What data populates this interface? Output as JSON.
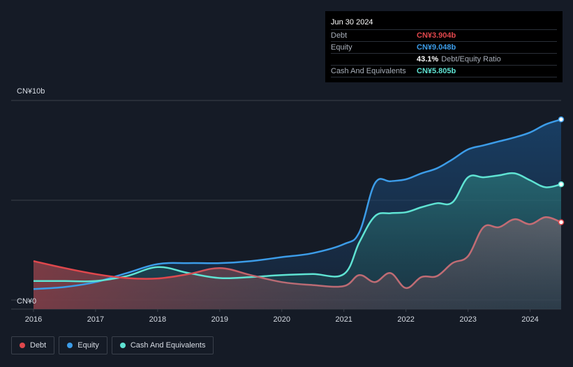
{
  "tooltip": {
    "date": "Jun 30 2024",
    "rows": [
      {
        "label": "Debt",
        "value": "CN¥3.904b",
        "color": "#e0474c"
      },
      {
        "label": "Equity",
        "value": "CN¥9.048b",
        "color": "#3c9ce8"
      },
      {
        "label": "",
        "value": "43.1%",
        "sub": "Debt/Equity Ratio",
        "color": "#ffffff"
      },
      {
        "label": "Cash And Equivalents",
        "value": "CN¥5.805b",
        "color": "#5fe3d3"
      }
    ]
  },
  "legend": [
    {
      "label": "Debt",
      "color": "#e0474c"
    },
    {
      "label": "Equity",
      "color": "#3c9ce8"
    },
    {
      "label": "Cash And Equivalents",
      "color": "#5fe3d3"
    }
  ],
  "chart_data": {
    "type": "area",
    "y_tick_labels": [
      "CN¥10b",
      "CN¥0"
    ],
    "ylim": [
      0,
      10
    ],
    "xlim": [
      2016.0,
      2024.5
    ],
    "x_tick_labels": [
      "2016",
      "2017",
      "2018",
      "2019",
      "2020",
      "2021",
      "2022",
      "2023",
      "2024"
    ],
    "grid": true,
    "series": [
      {
        "name": "Debt",
        "color": "#e0474c",
        "x": [
          2016.0,
          2016.5,
          2017.0,
          2017.5,
          2018.0,
          2018.5,
          2019.0,
          2019.5,
          2020.0,
          2020.5,
          2021.0,
          2021.25,
          2021.5,
          2021.75,
          2022.0,
          2022.25,
          2022.5,
          2022.75,
          2023.0,
          2023.25,
          2023.5,
          2023.75,
          2024.0,
          2024.25,
          2024.5
        ],
        "y": [
          1.95,
          1.6,
          1.3,
          1.1,
          1.08,
          1.3,
          1.6,
          1.25,
          0.9,
          0.75,
          0.7,
          1.25,
          0.9,
          1.35,
          0.6,
          1.15,
          1.2,
          1.85,
          2.2,
          3.65,
          3.65,
          4.05,
          3.8,
          4.15,
          3.9
        ]
      },
      {
        "name": "Equity",
        "color": "#3c9ce8",
        "x": [
          2016.0,
          2016.5,
          2017.0,
          2017.5,
          2018.0,
          2018.5,
          2019.0,
          2019.5,
          2020.0,
          2020.5,
          2021.0,
          2021.25,
          2021.5,
          2021.75,
          2022.0,
          2022.25,
          2022.5,
          2022.75,
          2023.0,
          2023.25,
          2023.5,
          2023.75,
          2024.0,
          2024.25,
          2024.5
        ],
        "y": [
          0.55,
          0.65,
          0.9,
          1.35,
          1.8,
          1.85,
          1.85,
          1.95,
          2.15,
          2.35,
          2.8,
          3.4,
          5.85,
          5.95,
          6.05,
          6.35,
          6.6,
          7.05,
          7.55,
          7.75,
          7.95,
          8.15,
          8.4,
          8.8,
          9.05
        ]
      },
      {
        "name": "Cash And Equivalents",
        "color": "#5fe3d3",
        "x": [
          2016.0,
          2016.5,
          2017.0,
          2017.5,
          2018.0,
          2018.5,
          2019.0,
          2019.5,
          2020.0,
          2020.5,
          2021.0,
          2021.25,
          2021.5,
          2021.75,
          2022.0,
          2022.25,
          2022.5,
          2022.75,
          2023.0,
          2023.25,
          2023.5,
          2023.75,
          2024.0,
          2024.25,
          2024.5
        ],
        "y": [
          0.95,
          0.95,
          0.95,
          1.2,
          1.65,
          1.35,
          1.1,
          1.15,
          1.25,
          1.3,
          1.3,
          2.9,
          4.2,
          4.35,
          4.4,
          4.65,
          4.85,
          4.9,
          6.15,
          6.15,
          6.25,
          6.35,
          6.0,
          5.65,
          5.8
        ]
      }
    ]
  }
}
